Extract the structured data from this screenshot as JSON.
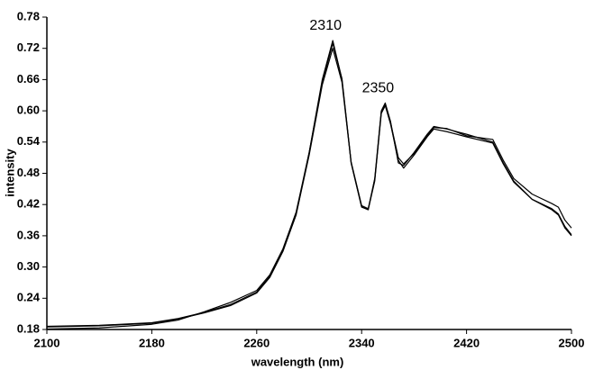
{
  "chart_data": {
    "type": "line",
    "x_label": "wavelength (nm)",
    "y_label": "intensity",
    "x": [
      2100,
      2140,
      2180,
      2200,
      2220,
      2240,
      2260,
      2270,
      2280,
      2290,
      2300,
      2310,
      2318,
      2325,
      2332,
      2340,
      2345,
      2350,
      2355,
      2358,
      2362,
      2368,
      2372,
      2380,
      2390,
      2395,
      2405,
      2420,
      2440,
      2448,
      2456,
      2470,
      2485,
      2490,
      2495,
      2500
    ],
    "series": [
      {
        "color": "#000000",
        "values": [
          0.185,
          0.187,
          0.192,
          0.2,
          0.212,
          0.226,
          0.25,
          0.28,
          0.33,
          0.4,
          0.52,
          0.66,
          0.735,
          0.66,
          0.5,
          0.415,
          0.41,
          0.47,
          0.6,
          0.615,
          0.58,
          0.5,
          0.495,
          0.52,
          0.555,
          0.57,
          0.565,
          0.555,
          0.54,
          0.5,
          0.465,
          0.43,
          0.41,
          0.4,
          0.375,
          0.36
        ]
      },
      {
        "color": "#000000",
        "values": [
          0.186,
          0.188,
          0.193,
          0.201,
          0.213,
          0.228,
          0.252,
          0.282,
          0.332,
          0.4,
          0.515,
          0.65,
          0.72,
          0.655,
          0.5,
          0.416,
          0.41,
          0.465,
          0.595,
          0.61,
          0.575,
          0.505,
          0.49,
          0.515,
          0.55,
          0.565,
          0.56,
          0.55,
          0.538,
          0.498,
          0.463,
          0.43,
          0.412,
          0.402,
          0.378,
          0.362
        ]
      },
      {
        "color": "#000000",
        "values": [
          0.181,
          0.183,
          0.19,
          0.198,
          0.214,
          0.232,
          0.255,
          0.285,
          0.335,
          0.405,
          0.52,
          0.655,
          0.73,
          0.662,
          0.502,
          0.418,
          0.412,
          0.468,
          0.598,
          0.612,
          0.578,
          0.51,
          0.498,
          0.518,
          0.552,
          0.568,
          0.566,
          0.552,
          0.545,
          0.505,
          0.47,
          0.44,
          0.422,
          0.415,
          0.39,
          0.375
        ]
      }
    ],
    "xlim": [
      2100,
      2500
    ],
    "xticks": [
      2100,
      2180,
      2260,
      2340,
      2420,
      2500
    ],
    "ylim": [
      0.18,
      0.78
    ],
    "yticks": [
      0.18,
      0.24,
      {
        "value": 0.3,
        "label": "0.30"
      },
      0.36,
      0.42,
      0.48,
      0.54,
      {
        "value": 0.6,
        "label": "0.60"
      },
      0.66,
      0.72,
      0.78
    ],
    "annotations": [
      {
        "text": "2310",
        "x": 2318,
        "y": 0.735
      },
      {
        "text": "2350",
        "x": 2358,
        "y": 0.615
      }
    ]
  }
}
